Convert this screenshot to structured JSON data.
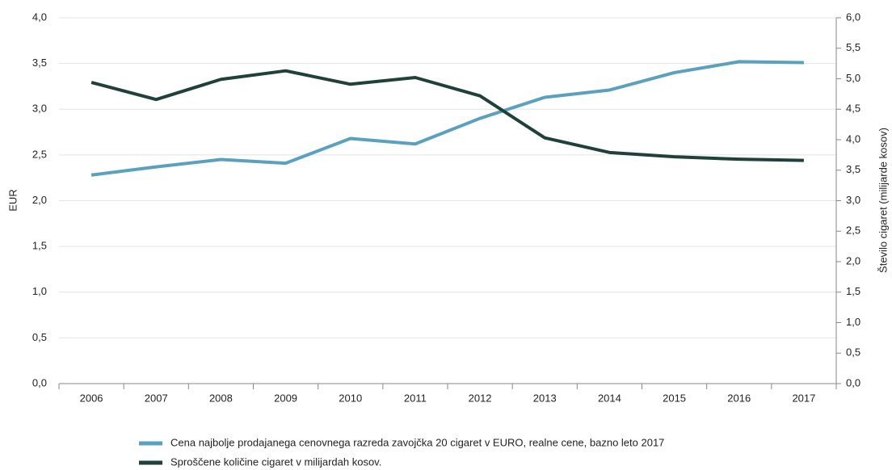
{
  "chart_data": {
    "type": "line",
    "ylabel": "EUR",
    "y2label": "Število cigaret (milijarde kosov)",
    "categories": [
      "2006",
      "2007",
      "2008",
      "2009",
      "2010",
      "2011",
      "2012",
      "2013",
      "2014",
      "2015",
      "2016",
      "2017"
    ],
    "series": [
      {
        "name": "Cena najbolje prodajanega cenovnega razreda zavojčka 20 cigaret v EURO, realne cene, bazno leto 2017",
        "color": "#5aa0bf",
        "axis": "y",
        "values": [
          2.28,
          2.37,
          2.45,
          2.41,
          2.68,
          2.62,
          2.9,
          3.13,
          3.21,
          3.4,
          3.52,
          3.51
        ]
      },
      {
        "name": "Sproščene količine cigaret v milijardah kosov.",
        "color": "#1f403b",
        "axis": "y2",
        "values": [
          4.94,
          4.66,
          4.99,
          5.13,
          4.91,
          5.02,
          4.72,
          4.03,
          3.79,
          3.72,
          3.68,
          3.66
        ]
      }
    ],
    "ylim": [
      0,
      4
    ],
    "yticks": [
      {
        "value": 0,
        "label": "0,0"
      },
      {
        "value": 0.5,
        "label": "0,5"
      },
      {
        "value": 1,
        "label": "1,0"
      },
      {
        "value": 1.5,
        "label": "1,5"
      },
      {
        "value": 2,
        "label": "2,0"
      },
      {
        "value": 2.5,
        "label": "2,5"
      },
      {
        "value": 3,
        "label": "3,0"
      },
      {
        "value": 3.5,
        "label": "3,5"
      },
      {
        "value": 4,
        "label": "4,0"
      }
    ],
    "y2lim": [
      0,
      6
    ],
    "y2ticks": [
      {
        "value": 0,
        "label": "0,0"
      },
      {
        "value": 0.5,
        "label": "0,5"
      },
      {
        "value": 1,
        "label": "1,0"
      },
      {
        "value": 1.5,
        "label": "1,5"
      },
      {
        "value": 2,
        "label": "2,0"
      },
      {
        "value": 2.5,
        "label": "2,5"
      },
      {
        "value": 3,
        "label": "3,0"
      },
      {
        "value": 3.5,
        "label": "3,5"
      },
      {
        "value": 4,
        "label": "4,0"
      },
      {
        "value": 4.5,
        "label": "4,5"
      },
      {
        "value": 5,
        "label": "5,0"
      },
      {
        "value": 5.5,
        "label": "5,5"
      },
      {
        "value": 6,
        "label": "6,0"
      }
    ],
    "grid": true,
    "legend": "bottom"
  }
}
